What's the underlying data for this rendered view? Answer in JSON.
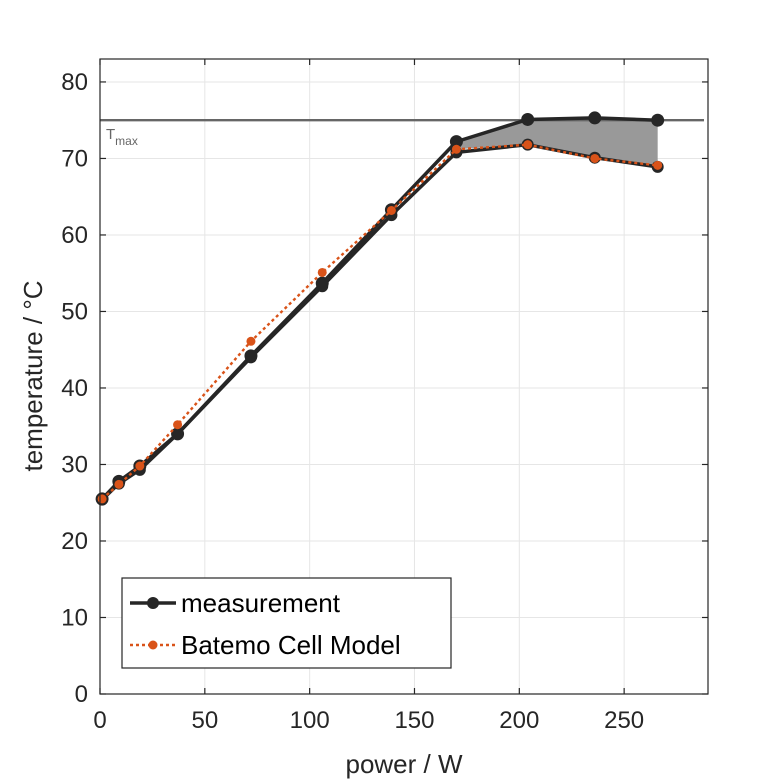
{
  "chart_data": {
    "type": "line",
    "xlabel": "power / W",
    "ylabel": "temperature / °C",
    "xlim": [
      0,
      290
    ],
    "ylim": [
      0,
      83
    ],
    "xticks": [
      0,
      50,
      100,
      150,
      200,
      250
    ],
    "yticks": [
      0,
      10,
      20,
      30,
      40,
      50,
      60,
      70,
      80
    ],
    "grid": true,
    "legend_position": "bottom-left",
    "threshold": {
      "label": "T",
      "label_sub": "max",
      "value": 75,
      "color": "#666666"
    },
    "series": [
      {
        "name": "measurement",
        "color": "#262626",
        "style": "solid",
        "x": [
          1,
          9,
          19,
          37,
          72,
          106,
          139,
          170,
          204,
          236,
          266
        ],
        "y": [
          25.5,
          27.8,
          29.8,
          34,
          44.2,
          53.7,
          63.3,
          72.2,
          75.1,
          75.3,
          75
        ],
        "x_low": [
          1,
          9,
          19,
          37,
          72,
          106,
          139,
          170,
          204,
          236,
          266
        ],
        "y_low": [
          25.4,
          27.5,
          29.3,
          34,
          44,
          53.3,
          62.6,
          70.8,
          71.8,
          70.1,
          68.9
        ]
      },
      {
        "name": "Batemo Cell Model",
        "color": "#D95319",
        "style": "dotted",
        "x": [
          1,
          9,
          19,
          37,
          72,
          106,
          139,
          170,
          204,
          236,
          266
        ],
        "y": [
          25.5,
          27.4,
          29.8,
          35.2,
          46.1,
          55.1,
          63.2,
          71.2,
          71.8,
          70,
          69.1
        ]
      }
    ],
    "shaded_region": {
      "color": "#999999",
      "x": [
        170,
        204,
        236,
        266
      ],
      "y_top": [
        72.2,
        75.1,
        75.3,
        75
      ],
      "y_bottom": [
        71.2,
        71.8,
        70,
        69.1
      ]
    }
  }
}
